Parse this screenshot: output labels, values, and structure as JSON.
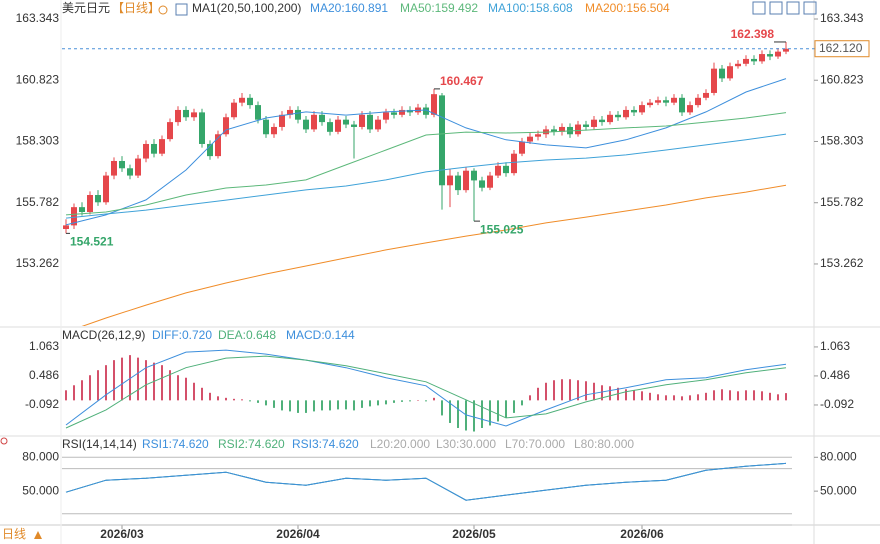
{
  "footer_label": "日线",
  "chart_data": [
    {
      "type": "candlestick",
      "title": "美元日元",
      "period": "【日线】",
      "indicator": "MA1(20,50,100,200)",
      "up_color": "#e5474b",
      "down_color": "#35a66a",
      "xlim": [
        -0.5,
        90.75
      ],
      "ylim": [
        150.75,
        164.125
      ],
      "yticks": [
        163.343,
        160.823,
        158.303,
        155.782,
        153.262
      ],
      "xticks": [
        {
          "value": 7,
          "label": "2026/03"
        },
        {
          "value": 29,
          "label": "2026/04"
        },
        {
          "value": 51,
          "label": "2026/05"
        },
        {
          "value": 72,
          "label": "2026/06"
        }
      ],
      "current_price": {
        "value": 162.12,
        "label": "162.120"
      },
      "candles": [
        [
          154.7,
          155.1,
          154.521,
          154.85
        ],
        [
          154.85,
          155.75,
          154.7,
          155.6
        ],
        [
          155.6,
          155.8,
          155.25,
          155.4
        ],
        [
          155.4,
          156.25,
          155.3,
          156.1
        ],
        [
          156.1,
          156.3,
          155.65,
          155.8
        ],
        [
          155.8,
          157.05,
          155.7,
          156.9
        ],
        [
          156.9,
          157.65,
          156.75,
          157.5
        ],
        [
          157.5,
          157.7,
          157.05,
          157.2
        ],
        [
          157.2,
          157.35,
          156.75,
          156.9
        ],
        [
          156.9,
          157.75,
          156.8,
          157.6
        ],
        [
          157.6,
          158.35,
          157.45,
          158.2
        ],
        [
          158.2,
          158.4,
          157.65,
          157.8
        ],
        [
          157.8,
          158.55,
          157.7,
          158.4
        ],
        [
          158.4,
          159.25,
          158.3,
          159.1
        ],
        [
          159.1,
          159.75,
          158.95,
          159.6
        ],
        [
          159.6,
          159.75,
          159.15,
          159.3
        ],
        [
          159.3,
          159.65,
          159.15,
          159.5
        ],
        [
          159.5,
          159.65,
          158.05,
          158.2
        ],
        [
          158.2,
          158.35,
          157.55,
          157.7
        ],
        [
          157.7,
          158.75,
          157.6,
          158.6
        ],
        [
          158.6,
          159.45,
          158.5,
          159.3
        ],
        [
          159.3,
          160.05,
          159.2,
          159.9
        ],
        [
          159.9,
          160.3,
          159.75,
          160.1
        ],
        [
          160.1,
          160.25,
          159.65,
          159.8
        ],
        [
          159.8,
          159.95,
          159.05,
          159.2
        ],
        [
          159.2,
          159.35,
          158.45,
          158.6
        ],
        [
          158.6,
          159.05,
          158.45,
          158.9
        ],
        [
          158.9,
          159.55,
          158.75,
          159.4
        ],
        [
          159.4,
          159.75,
          159.25,
          159.6
        ],
        [
          159.6,
          159.75,
          159.05,
          159.2
        ],
        [
          159.2,
          159.35,
          158.65,
          158.8
        ],
        [
          158.8,
          159.55,
          158.7,
          159.4
        ],
        [
          159.4,
          159.55,
          158.95,
          159.1
        ],
        [
          159.1,
          159.25,
          158.55,
          158.7
        ],
        [
          158.7,
          159.35,
          158.6,
          159.2
        ],
        [
          159.2,
          159.35,
          158.85,
          159.0
        ],
        [
          159.0,
          159.15,
          157.6,
          158.9
        ],
        [
          158.9,
          159.55,
          158.8,
          159.4
        ],
        [
          159.4,
          159.55,
          158.65,
          158.8
        ],
        [
          158.8,
          159.35,
          158.7,
          159.2
        ],
        [
          159.2,
          159.65,
          159.05,
          159.5
        ],
        [
          159.5,
          159.65,
          159.25,
          159.4
        ],
        [
          159.4,
          159.75,
          159.3,
          159.6
        ],
        [
          159.6,
          159.75,
          159.35,
          159.5
        ],
        [
          159.5,
          159.85,
          159.4,
          159.7
        ],
        [
          159.7,
          159.85,
          159.25,
          159.4
        ],
        [
          159.4,
          160.467,
          159.3,
          160.25
        ],
        [
          160.2,
          160.3,
          155.5,
          156.5
        ],
        [
          156.5,
          157.15,
          155.6,
          156.9
        ],
        [
          156.9,
          157.05,
          156.1,
          156.3
        ],
        [
          156.3,
          157.25,
          156.2,
          157.1
        ],
        [
          157.1,
          157.2,
          155.025,
          156.7
        ],
        [
          156.7,
          156.85,
          156.25,
          156.4
        ],
        [
          156.4,
          157.05,
          156.3,
          156.9
        ],
        [
          156.9,
          157.45,
          156.8,
          157.3
        ],
        [
          157.3,
          157.45,
          156.85,
          157.0
        ],
        [
          157.0,
          157.95,
          156.9,
          157.8
        ],
        [
          157.8,
          158.45,
          157.7,
          158.3
        ],
        [
          158.3,
          158.65,
          158.2,
          158.5
        ],
        [
          158.5,
          158.75,
          158.35,
          158.6
        ],
        [
          158.6,
          158.95,
          158.45,
          158.8
        ],
        [
          158.8,
          158.95,
          158.55,
          158.7
        ],
        [
          158.7,
          159.05,
          158.55,
          158.9
        ],
        [
          158.9,
          159.05,
          158.45,
          158.6
        ],
        [
          158.6,
          159.15,
          158.5,
          159.0
        ],
        [
          159.0,
          159.15,
          158.75,
          158.9
        ],
        [
          158.9,
          159.35,
          158.8,
          159.2
        ],
        [
          159.2,
          159.35,
          158.95,
          159.1
        ],
        [
          159.1,
          159.55,
          159.0,
          159.4
        ],
        [
          159.4,
          159.55,
          159.15,
          159.3
        ],
        [
          159.3,
          159.75,
          159.2,
          159.6
        ],
        [
          159.6,
          159.75,
          159.35,
          159.5
        ],
        [
          159.5,
          159.95,
          159.4,
          159.8
        ],
        [
          159.8,
          160.05,
          159.7,
          159.9
        ],
        [
          159.9,
          160.15,
          159.8,
          160.0
        ],
        [
          160.0,
          160.15,
          159.75,
          159.9
        ],
        [
          159.9,
          160.25,
          159.8,
          160.1
        ],
        [
          160.1,
          160.25,
          159.35,
          159.5
        ],
        [
          159.5,
          159.95,
          159.4,
          159.8
        ],
        [
          159.8,
          160.25,
          159.7,
          160.1
        ],
        [
          160.1,
          160.45,
          160.0,
          160.3
        ],
        [
          160.3,
          161.55,
          160.2,
          161.3
        ],
        [
          161.3,
          161.45,
          160.75,
          160.9
        ],
        [
          160.9,
          161.55,
          160.8,
          161.4
        ],
        [
          161.4,
          161.65,
          161.3,
          161.5
        ],
        [
          161.5,
          161.85,
          161.4,
          161.7
        ],
        [
          161.7,
          161.85,
          161.45,
          161.6
        ],
        [
          161.6,
          162.05,
          161.5,
          161.9
        ],
        [
          161.9,
          162.05,
          161.65,
          161.8
        ],
        [
          161.8,
          162.15,
          161.7,
          162.0
        ],
        [
          162.0,
          162.398,
          161.9,
          162.12
        ]
      ],
      "series": [
        {
          "name": "MA20:160.891",
          "color": "#3d8fdc",
          "x": [
            0,
            5,
            10,
            15,
            20,
            25,
            30,
            35,
            40,
            45,
            50,
            55,
            60,
            65,
            70,
            75,
            80,
            85,
            90
          ],
          "values": [
            154.87,
            155.28,
            155.9,
            157.13,
            158.78,
            159.27,
            159.52,
            159.39,
            159.52,
            159.6,
            158.86,
            158.37,
            158.16,
            158.04,
            158.37,
            158.86,
            159.52,
            160.34,
            160.891
          ]
        },
        {
          "name": "MA50:159.492",
          "color": "#5cb87a",
          "x": [
            0,
            5,
            10,
            15,
            20,
            25,
            30,
            35,
            40,
            45,
            50,
            55,
            60,
            65,
            70,
            75,
            80,
            85,
            90
          ],
          "values": [
            155.28,
            155.4,
            155.69,
            156.1,
            156.39,
            156.51,
            156.72,
            157.34,
            157.95,
            158.57,
            158.69,
            158.65,
            158.69,
            158.77,
            158.86,
            158.94,
            159.1,
            159.27,
            159.492
          ]
        },
        {
          "name": "MA100:158.608",
          "color": "#3fa2d8",
          "x": [
            0,
            5,
            10,
            15,
            20,
            25,
            30,
            35,
            40,
            45,
            50,
            55,
            60,
            65,
            70,
            75,
            80,
            85,
            90
          ],
          "values": [
            155.15,
            155.32,
            155.48,
            155.69,
            155.89,
            156.1,
            156.31,
            156.47,
            156.72,
            157.05,
            157.25,
            157.42,
            157.54,
            157.62,
            157.75,
            157.95,
            158.16,
            158.37,
            158.608
          ]
        },
        {
          "name": "MA200:156.504",
          "color": "#f08c28",
          "x": [
            0,
            5,
            10,
            15,
            20,
            25,
            30,
            35,
            40,
            45,
            50,
            55,
            60,
            65,
            70,
            75,
            80,
            85,
            90
          ],
          "values": [
            150.46,
            151.04,
            151.57,
            152.07,
            152.48,
            152.85,
            153.18,
            153.51,
            153.84,
            154.13,
            154.41,
            154.66,
            154.95,
            155.19,
            155.44,
            155.69,
            155.98,
            156.22,
            156.504
          ]
        }
      ]
    },
    {
      "type": "macd",
      "title": "MACD(26,12,9)",
      "xlim": [
        -0.5,
        90.75
      ],
      "ylim": [
        -0.63,
        1.4
      ],
      "yticks": [
        1.063,
        0.486,
        -0.092
      ],
      "histogram": {
        "name": "MACD:0.144",
        "color": "#3d8fdc",
        "up_color": "#d4506a",
        "down_color": "#4fb07a",
        "values": [
          0.2,
          0.3,
          0.4,
          0.5,
          0.6,
          0.7,
          0.8,
          0.85,
          0.9,
          0.85,
          0.8,
          0.75,
          0.7,
          0.6,
          0.5,
          0.45,
          0.35,
          0.25,
          0.15,
          0.08,
          0.05,
          0.03,
          0.02,
          -0.02,
          -0.05,
          -0.1,
          -0.15,
          -0.2,
          -0.22,
          -0.25,
          -0.25,
          -0.22,
          -0.2,
          -0.2,
          -0.18,
          -0.18,
          -0.2,
          -0.15,
          -0.12,
          -0.1,
          -0.08,
          -0.05,
          -0.03,
          -0.02,
          0.0,
          -0.02,
          0.05,
          -0.3,
          -0.45,
          -0.55,
          -0.6,
          -0.62,
          -0.55,
          -0.5,
          -0.42,
          -0.35,
          -0.25,
          -0.1,
          0.1,
          0.25,
          0.35,
          0.4,
          0.42,
          0.42,
          0.4,
          0.38,
          0.35,
          0.3,
          0.28,
          0.25,
          0.22,
          0.2,
          0.18,
          0.15,
          0.12,
          0.1,
          0.1,
          0.08,
          0.1,
          0.12,
          0.15,
          0.2,
          0.22,
          0.2,
          0.18,
          0.2,
          0.2,
          0.18,
          0.15,
          0.12,
          0.144
        ]
      },
      "series": [
        {
          "name": "DIFF:0.720",
          "color": "#3d8fdc",
          "x": [
            0,
            5,
            10,
            15,
            20,
            25,
            30,
            35,
            40,
            45,
            50,
            55,
            60,
            65,
            70,
            75,
            80,
            85,
            90
          ],
          "values": [
            -0.49,
            0.11,
            0.65,
            0.96,
            1.0,
            0.92,
            0.8,
            0.65,
            0.45,
            0.29,
            -0.29,
            -0.51,
            -0.19,
            0.11,
            0.25,
            0.41,
            0.45,
            0.61,
            0.72
          ]
        },
        {
          "name": "DEA:0.648",
          "color": "#4fb07a",
          "x": [
            0,
            5,
            10,
            15,
            20,
            25,
            30,
            35,
            40,
            45,
            50,
            55,
            60,
            65,
            70,
            75,
            80,
            85,
            90
          ],
          "values": [
            -0.55,
            -0.19,
            0.31,
            0.65,
            0.84,
            0.88,
            0.8,
            0.69,
            0.53,
            0.37,
            0.01,
            -0.35,
            -0.27,
            -0.03,
            0.17,
            0.31,
            0.41,
            0.55,
            0.648
          ]
        }
      ]
    },
    {
      "type": "rsi",
      "title": "RSI(14,14,14)",
      "xlim": [
        -0.5,
        90.75
      ],
      "ylim": [
        20,
        90
      ],
      "yticks": [
        {
          "value": 80,
          "label": "80.000"
        },
        {
          "value": 50,
          "label": "50.000"
        }
      ],
      "series": [
        {
          "name": "RSI1:74.620",
          "color": "#3d8fdc",
          "x": [
            0,
            5,
            10,
            15,
            20,
            25,
            30,
            35,
            40,
            45,
            50,
            55,
            60,
            65,
            70,
            75,
            80,
            85,
            90
          ],
          "values": [
            49.1,
            59.7,
            61.5,
            64.1,
            66.8,
            57.9,
            55.3,
            61.5,
            59.7,
            61.5,
            42.0,
            46.5,
            50.9,
            55.3,
            57.9,
            59.7,
            68.5,
            72.1,
            74.62
          ]
        },
        {
          "name": "RSI2:74.620",
          "color": "#4fb07a",
          "x": [
            0,
            5,
            10,
            15,
            20,
            25,
            30,
            35,
            40,
            45,
            50,
            55,
            60,
            65,
            70,
            75,
            80,
            85,
            90
          ],
          "values": [
            49.1,
            59.7,
            61.5,
            64.1,
            66.8,
            57.9,
            55.3,
            61.5,
            59.7,
            61.5,
            42.0,
            46.5,
            50.9,
            55.3,
            57.9,
            59.7,
            68.5,
            72.1,
            74.62
          ]
        },
        {
          "name": "RSI3:74.620",
          "color": "#3d8fdc",
          "x": [
            0,
            5,
            10,
            15,
            20,
            25,
            30,
            35,
            40,
            45,
            50,
            55,
            60,
            65,
            70,
            75,
            80,
            85,
            90
          ],
          "values": [
            49.1,
            59.7,
            61.5,
            64.1,
            66.8,
            57.9,
            55.3,
            61.5,
            59.7,
            61.5,
            42.0,
            46.5,
            50.9,
            55.3,
            57.9,
            59.7,
            68.5,
            72.1,
            74.62
          ]
        }
      ],
      "levels": [
        {
          "name": "L20:20.000",
          "value": 20
        },
        {
          "name": "L30:30.000",
          "value": 30
        },
        {
          "name": "L70:70.000",
          "value": 70
        },
        {
          "name": "L80:80.000",
          "value": 80
        }
      ]
    }
  ]
}
